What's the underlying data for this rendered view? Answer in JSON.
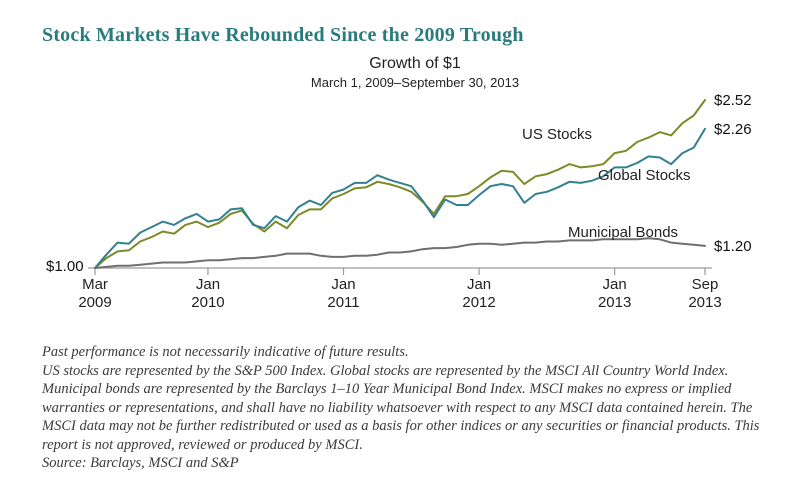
{
  "page": {
    "title": "Stock Markets Have Rebounded Since the 2009 Trough",
    "footnote_line1": "Past performance is not necessarily indicative of future results.",
    "footnote_body": "US stocks are represented by the S&P 500 Index. Global stocks are represented by the MSCI All Country World Index. Municipal bonds are represented by the Barclays 1–10 Year Municipal Bond Index. MSCI makes no express or implied warranties or representations, and shall have no liability whatsoever with respect to any MSCI data contained herein. The MSCI data may not be further redistributed or used as a basis for other indices or any securities or financial products. This report is not approved, reviewed or produced by MSCI.",
    "source": "Source: Barclays, MSCI and S&P"
  },
  "chart_data": {
    "type": "line",
    "title": "Growth of $1",
    "subtitle": "March 1, 2009–September 30, 2013",
    "start_label": "$1.00",
    "x_description": "Monthly values, index 0 = March 2009 through index 54 = September 2013",
    "ylim": [
      0.95,
      2.65
    ],
    "grid": false,
    "legend_position": "inline-labels",
    "axis_color": "#9a9a9a",
    "x_ticks": [
      {
        "month": "Mar",
        "year": "2009",
        "index": 0
      },
      {
        "month": "Jan",
        "year": "2010",
        "index": 10
      },
      {
        "month": "Jan",
        "year": "2011",
        "index": 22
      },
      {
        "month": "Jan",
        "year": "2012",
        "index": 34
      },
      {
        "month": "Jan",
        "year": "2013",
        "index": 46
      },
      {
        "month": "Sep",
        "year": "2013",
        "index": 54
      }
    ],
    "series": [
      {
        "name": "US Stocks",
        "color": "#7d8a28",
        "end_label": "$2.52",
        "values": [
          1.0,
          1.09,
          1.15,
          1.16,
          1.24,
          1.28,
          1.33,
          1.31,
          1.39,
          1.42,
          1.37,
          1.41,
          1.49,
          1.52,
          1.4,
          1.33,
          1.42,
          1.36,
          1.48,
          1.53,
          1.53,
          1.63,
          1.67,
          1.72,
          1.73,
          1.78,
          1.76,
          1.73,
          1.69,
          1.6,
          1.49,
          1.65,
          1.65,
          1.67,
          1.74,
          1.82,
          1.88,
          1.87,
          1.76,
          1.83,
          1.85,
          1.89,
          1.94,
          1.91,
          1.92,
          1.94,
          2.04,
          2.06,
          2.14,
          2.18,
          2.23,
          2.2,
          2.31,
          2.38,
          2.52
        ]
      },
      {
        "name": "Global Stocks",
        "color": "#33808f",
        "end_label": "$2.26",
        "values": [
          1.0,
          1.12,
          1.23,
          1.22,
          1.32,
          1.37,
          1.42,
          1.39,
          1.45,
          1.49,
          1.42,
          1.44,
          1.53,
          1.54,
          1.39,
          1.36,
          1.47,
          1.42,
          1.55,
          1.61,
          1.57,
          1.68,
          1.71,
          1.77,
          1.77,
          1.84,
          1.8,
          1.77,
          1.74,
          1.61,
          1.46,
          1.62,
          1.57,
          1.57,
          1.66,
          1.74,
          1.76,
          1.74,
          1.59,
          1.67,
          1.69,
          1.73,
          1.78,
          1.77,
          1.79,
          1.83,
          1.91,
          1.91,
          1.95,
          2.01,
          2.0,
          1.94,
          2.04,
          2.09,
          2.26
        ]
      },
      {
        "name": "Municipal Bonds",
        "color": "#6f6f6f",
        "end_label": "$1.20",
        "values": [
          1.0,
          1.01,
          1.02,
          1.02,
          1.03,
          1.04,
          1.05,
          1.05,
          1.05,
          1.06,
          1.07,
          1.07,
          1.08,
          1.09,
          1.09,
          1.1,
          1.11,
          1.13,
          1.13,
          1.13,
          1.11,
          1.1,
          1.1,
          1.11,
          1.11,
          1.12,
          1.14,
          1.14,
          1.15,
          1.17,
          1.18,
          1.18,
          1.19,
          1.21,
          1.22,
          1.22,
          1.21,
          1.22,
          1.23,
          1.23,
          1.24,
          1.24,
          1.25,
          1.25,
          1.25,
          1.26,
          1.26,
          1.26,
          1.26,
          1.27,
          1.26,
          1.23,
          1.22,
          1.21,
          1.2
        ]
      }
    ]
  }
}
